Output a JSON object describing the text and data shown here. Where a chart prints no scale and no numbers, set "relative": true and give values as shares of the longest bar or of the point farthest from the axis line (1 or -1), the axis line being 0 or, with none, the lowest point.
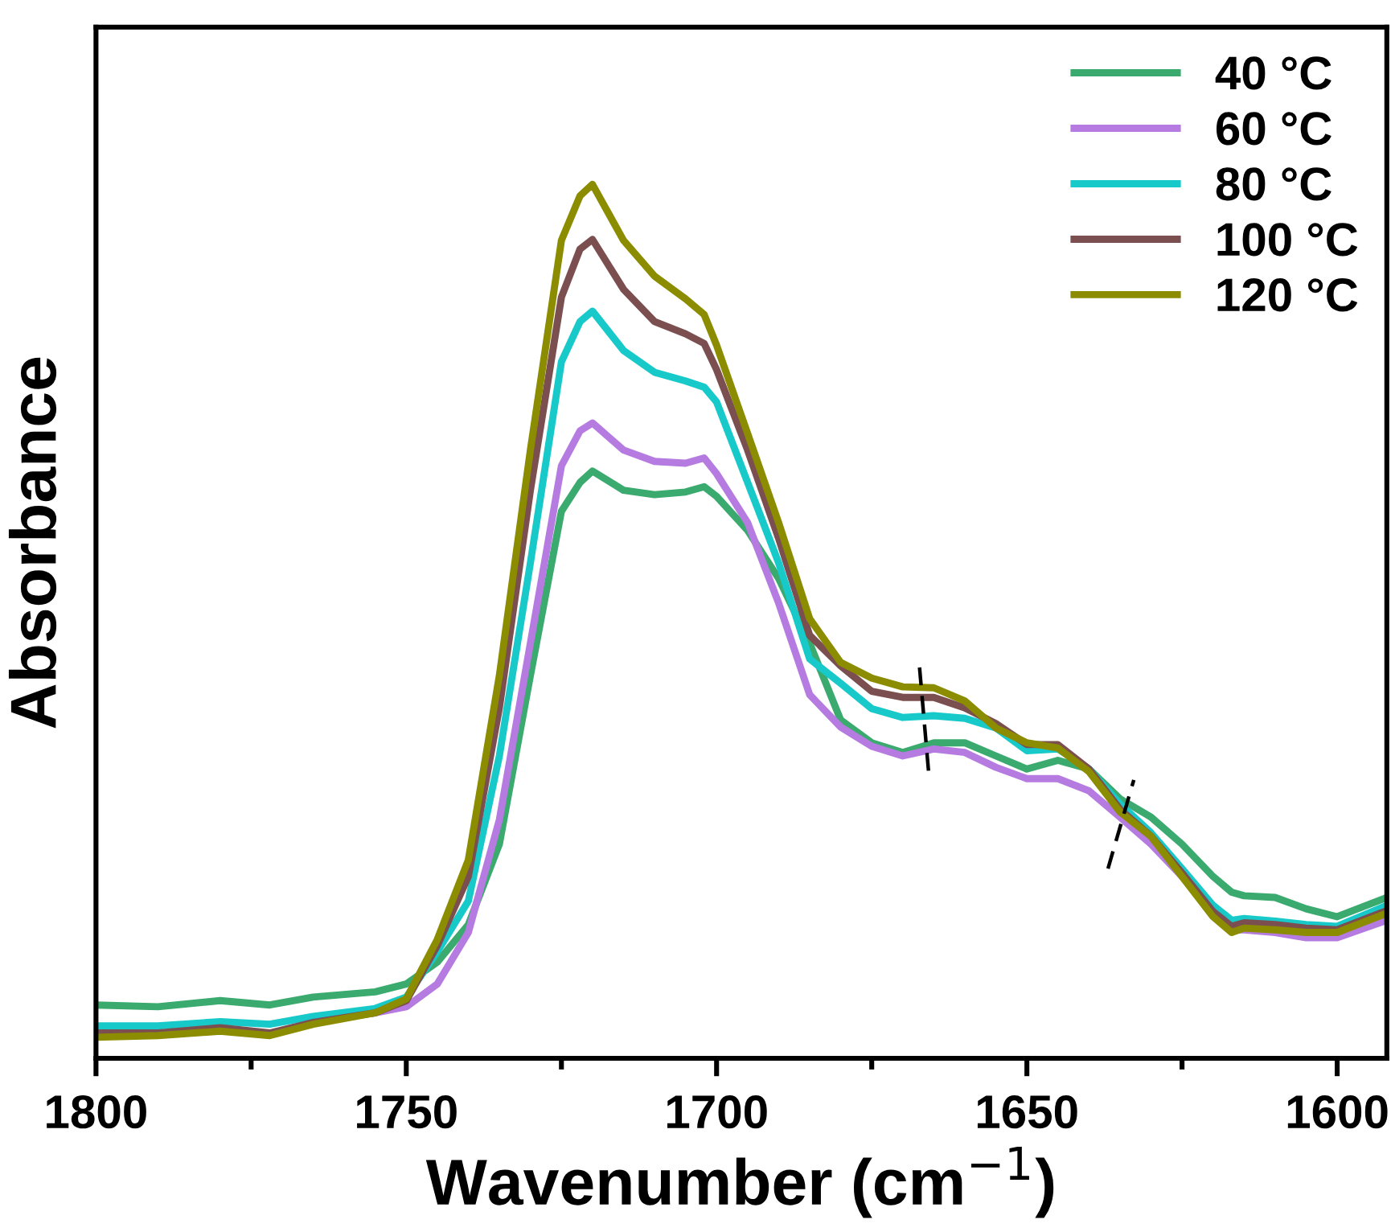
{
  "chart_data": {
    "type": "line",
    "relative": true,
    "xlabel": "Wavenumber (cm$^{−1}$)",
    "ylabel": "Absorbance",
    "xlim": [
      1800,
      1592
    ],
    "xticks": [
      1800,
      {
        "value": 1775,
        "label": null
      },
      1750,
      {
        "value": 1725,
        "label": null
      },
      1700,
      {
        "value": 1675,
        "label": null
      },
      1650,
      {
        "value": 1625,
        "label": null
      },
      1600
    ],
    "x": [
      1800,
      1790,
      1780,
      1772,
      1765,
      1755,
      1750,
      1745,
      1740,
      1735,
      1730,
      1725,
      1722,
      1720,
      1715,
      1710,
      1705,
      1702,
      1700,
      1695,
      1690,
      1685,
      1680,
      1675,
      1670,
      1665,
      1660,
      1655,
      1650,
      1645,
      1640,
      1635,
      1630,
      1625,
      1620,
      1617,
      1615,
      1610,
      1605,
      1600,
      1592
    ],
    "legend": "top right",
    "grid": false,
    "marker": "none",
    "line_style": "solid",
    "series": [
      {
        "name": "40 °C",
        "color": "#3aaa6e",
        "values": [
          0.061,
          0.059,
          0.066,
          0.061,
          0.07,
          0.076,
          0.085,
          0.11,
          0.153,
          0.245,
          0.438,
          0.626,
          0.659,
          0.672,
          0.65,
          0.645,
          0.648,
          0.654,
          0.643,
          0.604,
          0.549,
          0.475,
          0.387,
          0.361,
          0.35,
          0.361,
          0.361,
          0.346,
          0.331,
          0.341,
          0.331,
          0.297,
          0.276,
          0.245,
          0.208,
          0.19,
          0.186,
          0.184,
          0.171,
          0.162,
          0.184
        ]
      },
      {
        "name": "60 °C",
        "color": "#b57be0",
        "values": [
          null,
          null,
          null,
          null,
          null,
          0.052,
          0.059,
          0.085,
          0.144,
          0.273,
          0.475,
          0.678,
          0.718,
          0.727,
          0.696,
          0.683,
          0.681,
          0.687,
          0.669,
          0.613,
          0.521,
          0.416,
          0.379,
          0.357,
          0.346,
          0.354,
          0.35,
          0.333,
          0.32,
          0.32,
          0.306,
          0.276,
          0.245,
          0.208,
          0.166,
          0.147,
          0.147,
          0.144,
          0.138,
          0.138,
          0.158
        ]
      },
      {
        "name": "80 °C",
        "color": "#17c9c9",
        "values": [
          0.037,
          0.037,
          0.042,
          0.039,
          0.048,
          0.057,
          0.07,
          0.122,
          0.18,
          0.346,
          0.567,
          0.797,
          0.843,
          0.855,
          0.81,
          0.785,
          0.775,
          0.768,
          0.751,
          0.659,
          0.567,
          0.457,
          0.429,
          0.4,
          0.39,
          0.392,
          0.389,
          0.378,
          0.352,
          0.354,
          0.331,
          0.291,
          0.258,
          0.217,
          0.175,
          0.158,
          0.16,
          0.157,
          0.153,
          0.151,
          0.175
        ]
      },
      {
        "name": "100 °C",
        "color": "#7b4f4f",
        "values": [
          0.029,
          0.029,
          0.035,
          0.029,
          0.041,
          0.052,
          0.066,
          0.129,
          0.208,
          0.401,
          0.65,
          0.871,
          0.926,
          0.937,
          0.88,
          0.843,
          0.829,
          0.818,
          0.788,
          0.696,
          0.595,
          0.484,
          0.449,
          0.42,
          0.413,
          0.413,
          0.401,
          0.383,
          0.359,
          0.359,
          0.331,
          0.285,
          0.254,
          0.212,
          0.168,
          0.151,
          0.155,
          0.153,
          0.149,
          0.147,
          0.169
        ]
      },
      {
        "name": "120 °C",
        "color": "#8c8c00",
        "values": [
          0.024,
          0.026,
          0.031,
          0.026,
          0.039,
          0.052,
          0.068,
          0.136,
          0.227,
          0.438,
          0.696,
          0.936,
          0.987,
          1,
          0.936,
          0.895,
          0.869,
          0.851,
          0.816,
          0.715,
          0.613,
          0.503,
          0.453,
          0.435,
          0.425,
          0.424,
          0.409,
          0.378,
          0.361,
          0.355,
          0.328,
          0.282,
          0.254,
          0.208,
          0.162,
          0.144,
          0.149,
          0.147,
          0.144,
          0.144,
          0.166
        ]
      }
    ]
  }
}
